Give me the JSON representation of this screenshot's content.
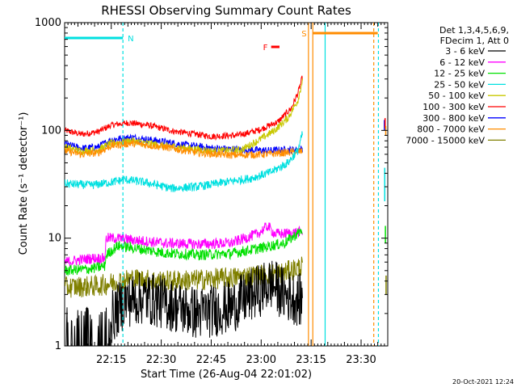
{
  "chart_data": {
    "type": "line",
    "title": "RHESSI Observing Summary Count Rates",
    "xlabel": "Start Time (26-Aug-04 22:01:02)",
    "ylabel": "Count Rate (s⁻¹ detector⁻¹)",
    "yscale": "log",
    "ylim": [
      1,
      1000
    ],
    "xlim": [
      0,
      97
    ],
    "x_ticks": [
      {
        "t": 14,
        "label": "22:15"
      },
      {
        "t": 29,
        "label": "22:30"
      },
      {
        "t": 44,
        "label": "22:45"
      },
      {
        "t": 59,
        "label": "23:00"
      },
      {
        "t": 74,
        "label": "23:15"
      },
      {
        "t": 89,
        "label": "23:30"
      }
    ],
    "y_ticks": [
      {
        "v": 1,
        "label": "1"
      },
      {
        "v": 10,
        "label": "10"
      },
      {
        "v": 100,
        "label": "100"
      },
      {
        "v": 1000,
        "label": "1000"
      }
    ],
    "header": {
      "detectors": "Det 1,3,4,5,6,9,",
      "decim": "FDecim 1, Att 0"
    },
    "legend": [
      {
        "label": "3 - 6 keV",
        "color": "#000000"
      },
      {
        "label": "6 - 12 keV",
        "color": "#ff00ff"
      },
      {
        "label": "12 - 25 keV",
        "color": "#00e000"
      },
      {
        "label": "25 - 50 keV",
        "color": "#00e0e0"
      },
      {
        "label": "50 - 100 keV",
        "color": "#c8c800"
      },
      {
        "label": "100 - 300 keV",
        "color": "#ff0000"
      },
      {
        "label": "300 - 800 keV",
        "color": "#0000ff"
      },
      {
        "label": "800 - 7000 keV",
        "color": "#ff8c00"
      },
      {
        "label": "7000 - 15000 keV",
        "color": "#808000"
      }
    ],
    "flags": [
      {
        "label": "N",
        "color": "#00e0e0",
        "t_start": 0,
        "t_end": 17.5
      },
      {
        "label": "S",
        "color": "#ff8c00",
        "t_start": 74.5,
        "t_end": 94
      },
      {
        "label": "F",
        "color": "#ff0000",
        "t_start": 62,
        "t_end": 64.5
      }
    ],
    "series": [
      {
        "name": "100 - 300 keV",
        "color": "#ff0000",
        "noise": 0.03,
        "points": [
          [
            0,
            100
          ],
          [
            5,
            92
          ],
          [
            10,
            97
          ],
          [
            14,
            112
          ],
          [
            19,
            118
          ],
          [
            25,
            112
          ],
          [
            33,
            98
          ],
          [
            44,
            88
          ],
          [
            52,
            90
          ],
          [
            58,
            100
          ],
          [
            64,
            120
          ],
          [
            68,
            160
          ],
          [
            70,
            220
          ],
          [
            71.5,
            320
          ]
        ]
      },
      {
        "name": "300 - 800 keV",
        "color": "#0000ff",
        "noise": 0.035,
        "points": [
          [
            0,
            75
          ],
          [
            5,
            68
          ],
          [
            10,
            70
          ],
          [
            14,
            82
          ],
          [
            20,
            86
          ],
          [
            28,
            80
          ],
          [
            35,
            74
          ],
          [
            45,
            68
          ],
          [
            55,
            66
          ],
          [
            62,
            65
          ],
          [
            66,
            66
          ],
          [
            70,
            66
          ],
          [
            71.5,
            68
          ]
        ]
      },
      {
        "name": "50 - 100 keV",
        "color": "#c8c800",
        "noise": 0.035,
        "points": [
          [
            0,
            70
          ],
          [
            5,
            64
          ],
          [
            10,
            66
          ],
          [
            14,
            76
          ],
          [
            20,
            80
          ],
          [
            30,
            72
          ],
          [
            45,
            64
          ],
          [
            53,
            66
          ],
          [
            58,
            80
          ],
          [
            63,
            100
          ],
          [
            67,
            130
          ],
          [
            70,
            190
          ],
          [
            71.5,
            300
          ]
        ]
      },
      {
        "name": "800 - 7000 keV",
        "color": "#ff8c00",
        "noise": 0.035,
        "points": [
          [
            0,
            65
          ],
          [
            5,
            60
          ],
          [
            10,
            62
          ],
          [
            14,
            72
          ],
          [
            20,
            76
          ],
          [
            30,
            70
          ],
          [
            40,
            62
          ],
          [
            50,
            59
          ],
          [
            60,
            60
          ],
          [
            66,
            62
          ],
          [
            71.5,
            64
          ]
        ]
      },
      {
        "name": "25 - 50 keV",
        "color": "#00e0e0",
        "noise": 0.04,
        "points": [
          [
            0,
            32
          ],
          [
            8,
            31
          ],
          [
            14,
            33
          ],
          [
            18,
            35
          ],
          [
            24,
            33
          ],
          [
            32,
            29
          ],
          [
            40,
            30
          ],
          [
            48,
            33
          ],
          [
            56,
            36
          ],
          [
            62,
            41
          ],
          [
            67,
            50
          ],
          [
            70,
            65
          ],
          [
            71.5,
            95
          ]
        ]
      },
      {
        "name": "6 - 12 keV",
        "color": "#ff00ff",
        "noise": 0.05,
        "points": [
          [
            0,
            6
          ],
          [
            8,
            6.5
          ],
          [
            12,
            6.5
          ],
          [
            12.5,
            10
          ],
          [
            16,
            10
          ],
          [
            22,
            9.5
          ],
          [
            30,
            9
          ],
          [
            40,
            8.8
          ],
          [
            50,
            9
          ],
          [
            58,
            11
          ],
          [
            61,
            13
          ],
          [
            63,
            11
          ],
          [
            66,
            11
          ],
          [
            71.5,
            11.5
          ]
        ]
      },
      {
        "name": "12 - 25 keV",
        "color": "#00e000",
        "noise": 0.05,
        "points": [
          [
            0,
            5
          ],
          [
            8,
            5.2
          ],
          [
            12,
            5.5
          ],
          [
            12.5,
            7
          ],
          [
            16,
            8.5
          ],
          [
            22,
            8
          ],
          [
            30,
            7.3
          ],
          [
            40,
            7
          ],
          [
            50,
            7.2
          ],
          [
            58,
            8
          ],
          [
            62,
            8.5
          ],
          [
            66,
            9
          ],
          [
            71.5,
            12
          ]
        ]
      },
      {
        "name": "7000 - 15000 keV",
        "color": "#808000",
        "noise": 0.1,
        "points": [
          [
            0,
            3.5
          ],
          [
            10,
            3.6
          ],
          [
            20,
            4.2
          ],
          [
            30,
            4.0
          ],
          [
            40,
            4.1
          ],
          [
            50,
            4.3
          ],
          [
            60,
            4.6
          ],
          [
            66,
            4.8
          ],
          [
            71.5,
            5.5
          ]
        ]
      },
      {
        "name": "3 - 6 keV",
        "color": "#000000",
        "noise": 0.25,
        "points": [
          [
            0,
            1
          ],
          [
            12,
            1.2
          ],
          [
            14,
            1.8
          ],
          [
            18,
            2.6
          ],
          [
            24,
            2.8
          ],
          [
            30,
            2.5
          ],
          [
            40,
            2.0
          ],
          [
            50,
            2.3
          ],
          [
            58,
            3.2
          ],
          [
            62,
            3.8
          ],
          [
            66,
            3.0
          ],
          [
            71.5,
            2.6
          ]
        ]
      }
    ],
    "post_gap_marks": [
      {
        "color": "#0000ff",
        "t": 96,
        "v_from": 100,
        "v_to": 125
      },
      {
        "color": "#ff0000",
        "t": 96.2,
        "v_from": 105,
        "v_to": 130
      },
      {
        "color": "#ff8c00",
        "t": 96.4,
        "v_from": 90,
        "v_to": 110
      },
      {
        "color": "#00e0e0",
        "t": 96.1,
        "v_from": 22,
        "v_to": 45
      },
      {
        "color": "#00e000",
        "t": 96.3,
        "v_from": 9,
        "v_to": 13
      },
      {
        "color": "#808000",
        "t": 96.5,
        "v_from": 3,
        "v_to": 4.5
      }
    ],
    "vertical_markers": [
      {
        "t": 17.5,
        "color": "#00e0e0",
        "style": "dashed"
      },
      {
        "t": 73.2,
        "color": "#ff8c00",
        "style": "solid"
      },
      {
        "t": 74.5,
        "color": "#ff8c00",
        "style": "solid"
      },
      {
        "t": 78.2,
        "color": "#00e0e0",
        "style": "solid"
      },
      {
        "t": 92.8,
        "color": "#ff8c00",
        "style": "dashed"
      },
      {
        "t": 94.2,
        "color": "#00e0e0",
        "style": "dashed"
      }
    ]
  },
  "footer": {
    "timestamp": "20-Oct-2021 12:24"
  }
}
